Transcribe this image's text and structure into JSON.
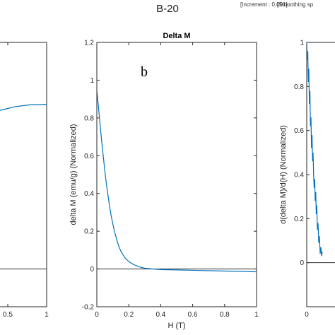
{
  "figure": {
    "title": "B-20",
    "increment_label": "[Increment : 0.001]",
    "smoothing_label": "[Smoothing sp"
  },
  "chart_data": [
    {
      "type": "line",
      "title": "",
      "xlabel": "",
      "ylabel": "",
      "x_tick_labels": [
        "0.5",
        "1"
      ],
      "visible_x_range": [
        0.4,
        1.0
      ],
      "zero_line": true,
      "series": [
        {
          "color": "#0072bd",
          "x": [
            0.4,
            0.5,
            0.6,
            0.7,
            0.8,
            0.9,
            1.0
          ],
          "y": [
            0.84,
            0.85,
            0.86,
            0.865,
            0.87,
            0.87,
            0.872
          ]
        }
      ]
    },
    {
      "type": "line",
      "title": "Delta M",
      "panel_letter": "b",
      "xlabel": "H (T)",
      "ylabel": "delta M (emu/g) (Normalized)",
      "xlim": [
        0,
        1
      ],
      "ylim": [
        -0.2,
        1.2
      ],
      "x_tick_labels": [
        "0",
        "0.2",
        "0.4",
        "0.6",
        "0.8",
        "1"
      ],
      "y_tick_labels": [
        "-0.2",
        "0",
        "0.2",
        "0.4",
        "0.6",
        "0.8",
        "1",
        "1.2"
      ],
      "zero_line": true,
      "series": [
        {
          "color": "#0072bd",
          "x": [
            0,
            0.01,
            0.02,
            0.03,
            0.04,
            0.05,
            0.06,
            0.07,
            0.08,
            0.09,
            0.1,
            0.11,
            0.12,
            0.13,
            0.14,
            0.15,
            0.16,
            0.18,
            0.2,
            0.22,
            0.24,
            0.26,
            0.28,
            0.3,
            0.35,
            0.4,
            0.5,
            0.6,
            0.7,
            0.8,
            0.9,
            1.0
          ],
          "y": [
            0.95,
            0.86,
            0.77,
            0.68,
            0.6,
            0.52,
            0.45,
            0.39,
            0.33,
            0.28,
            0.24,
            0.2,
            0.17,
            0.14,
            0.115,
            0.095,
            0.08,
            0.055,
            0.04,
            0.028,
            0.02,
            0.013,
            0.008,
            0.004,
            0.0,
            -0.003,
            -0.005,
            -0.007,
            -0.009,
            -0.011,
            -0.013,
            -0.015
          ]
        }
      ]
    },
    {
      "type": "line",
      "title": "",
      "ylabel": "d(delta M)/d(H) (Normalized)",
      "xlabel": "",
      "xlim": [
        0,
        0.16
      ],
      "ylim": [
        -0.2,
        1.0
      ],
      "x_tick_labels": [
        "0"
      ],
      "y_tick_labels": [
        "0",
        "0.2",
        "0.4",
        "0.6",
        "0.8",
        "1"
      ],
      "zero_line": true,
      "series": [
        {
          "color": "#0072bd",
          "x": [
            0,
            0.003,
            0.006,
            0.009,
            0.012,
            0.015,
            0.018,
            0.021,
            0.024,
            0.027,
            0.03,
            0.033,
            0.036,
            0.039,
            0.042,
            0.045,
            0.048,
            0.051,
            0.054,
            0.057,
            0.06,
            0.064,
            0.068,
            0.072,
            0.076,
            0.08,
            0.084,
            0.088
          ],
          "y": [
            1.0,
            0.92,
            0.96,
            0.82,
            0.88,
            0.72,
            0.78,
            0.62,
            0.66,
            0.52,
            0.58,
            0.46,
            0.5,
            0.4,
            0.34,
            0.38,
            0.28,
            0.32,
            0.22,
            0.26,
            0.15,
            0.18,
            0.09,
            0.12,
            0.04,
            0.07,
            0.03,
            0.05
          ]
        }
      ]
    }
  ]
}
